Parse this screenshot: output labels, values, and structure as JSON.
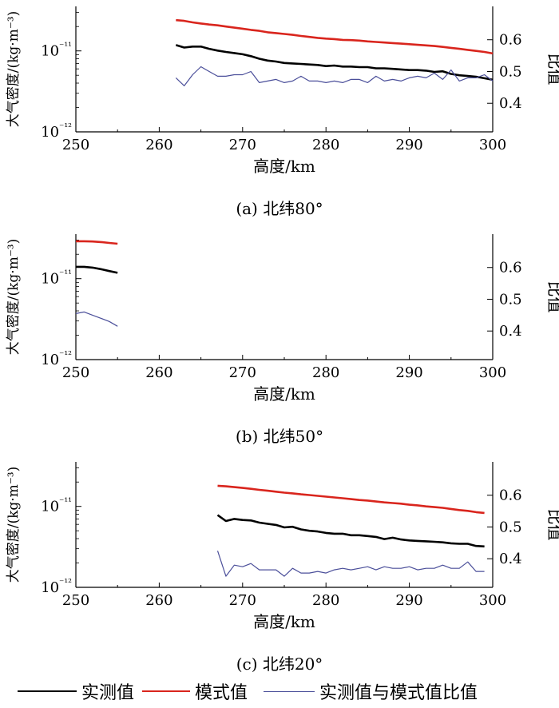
{
  "legend": {
    "measured": "实测值",
    "model": "模式值",
    "ratio": "实测值与模式值比值"
  },
  "colors": {
    "measured": "#000000",
    "model": "#d9251d",
    "ratio": "#4b4f9a"
  },
  "chart_data": [
    {
      "type": "line",
      "caption": "(a) 北纬80°",
      "xlabel": "高度/km",
      "ylabel": "大气密度/(kg·m⁻³)",
      "ylabel_right": "比值",
      "xlim": [
        250,
        300
      ],
      "xticks": [
        250,
        260,
        270,
        280,
        290,
        300
      ],
      "ylim_exp": [
        -12,
        -10.45
      ],
      "yscale": "log",
      "yticks": [
        {
          "exp": -12,
          "label": "10⁻¹²"
        },
        {
          "exp": -11,
          "label": "10⁻¹¹"
        }
      ],
      "y2lim": [
        0.31,
        0.705
      ],
      "y2ticks": [
        0.4,
        0.5,
        0.6
      ],
      "series": [
        {
          "name": "实测值",
          "axis": "left",
          "x": [
            262,
            263,
            264,
            265,
            266,
            267,
            268,
            269,
            270,
            271,
            272,
            273,
            274,
            275,
            276,
            277,
            278,
            279,
            280,
            281,
            282,
            283,
            284,
            285,
            286,
            287,
            288,
            289,
            290,
            291,
            292,
            293,
            294,
            295,
            296,
            297,
            298,
            299,
            300
          ],
          "y": [
            1.18e-11,
            1.1e-11,
            1.13e-11,
            1.13e-11,
            1.06e-11,
            1.01e-11,
            9.7e-12,
            9.4e-12,
            9.1e-12,
            8.6e-12,
            8e-12,
            7.6e-12,
            7.4e-12,
            7.1e-12,
            7e-12,
            6.9e-12,
            6.8e-12,
            6.7e-12,
            6.5e-12,
            6.6e-12,
            6.4e-12,
            6.4e-12,
            6.3e-12,
            6.3e-12,
            6.1e-12,
            6.1e-12,
            6e-12,
            5.9e-12,
            5.8e-12,
            5.8e-12,
            5.7e-12,
            5.5e-12,
            5.6e-12,
            5.2e-12,
            5e-12,
            4.9e-12,
            4.8e-12,
            4.6e-12,
            4.4e-12
          ]
        },
        {
          "name": "模式值",
          "axis": "left",
          "x": [
            262,
            263,
            264,
            265,
            266,
            267,
            268,
            269,
            270,
            271,
            272,
            273,
            274,
            275,
            276,
            277,
            278,
            279,
            280,
            281,
            282,
            283,
            284,
            285,
            286,
            287,
            288,
            289,
            290,
            291,
            292,
            293,
            294,
            295,
            296,
            297,
            298,
            299,
            300
          ],
          "y": [
            2.4e-11,
            2.35e-11,
            2.25e-11,
            2.18e-11,
            2.12e-11,
            2.07e-11,
            2e-11,
            1.94e-11,
            1.88e-11,
            1.82e-11,
            1.77e-11,
            1.7e-11,
            1.66e-11,
            1.62e-11,
            1.58e-11,
            1.53e-11,
            1.49e-11,
            1.45e-11,
            1.42e-11,
            1.4e-11,
            1.37e-11,
            1.36e-11,
            1.34e-11,
            1.31e-11,
            1.29e-11,
            1.27e-11,
            1.25e-11,
            1.23e-11,
            1.21e-11,
            1.19e-11,
            1.17e-11,
            1.15e-11,
            1.12e-11,
            1.09e-11,
            1.06e-11,
            1.03e-11,
            1e-11,
            9.7e-12,
            9.3e-12
          ]
        },
        {
          "name": "实测值与模式值比值",
          "axis": "right",
          "x": [
            262,
            263,
            264,
            265,
            266,
            267,
            268,
            269,
            270,
            271,
            272,
            273,
            274,
            275,
            276,
            277,
            278,
            279,
            280,
            281,
            282,
            283,
            284,
            285,
            286,
            287,
            288,
            289,
            290,
            291,
            292,
            293,
            294,
            295,
            296,
            297,
            298,
            299,
            300
          ],
          "y": [
            0.48,
            0.455,
            0.49,
            0.515,
            0.5,
            0.485,
            0.485,
            0.49,
            0.49,
            0.5,
            0.465,
            0.47,
            0.475,
            0.465,
            0.47,
            0.485,
            0.47,
            0.47,
            0.465,
            0.47,
            0.465,
            0.475,
            0.475,
            0.465,
            0.485,
            0.47,
            0.475,
            0.47,
            0.48,
            0.485,
            0.48,
            0.495,
            0.475,
            0.505,
            0.47,
            0.48,
            0.48,
            0.49,
            0.47
          ]
        }
      ]
    },
    {
      "type": "line",
      "caption": "(b) 北纬50°",
      "xlabel": "高度/km",
      "ylabel": "大气密度/(kg·m⁻³)",
      "ylabel_right": "比值",
      "xlim": [
        250,
        300
      ],
      "xticks": [
        250,
        260,
        270,
        280,
        290,
        300
      ],
      "ylim_exp": [
        -12,
        -10.45
      ],
      "yscale": "log",
      "yticks": [
        {
          "exp": -12,
          "label": "10⁻¹²"
        },
        {
          "exp": -11,
          "label": "10⁻¹¹"
        }
      ],
      "y2lim": [
        0.31,
        0.705
      ],
      "y2ticks": [
        0.4,
        0.5,
        0.6
      ],
      "series": [
        {
          "name": "实测值",
          "axis": "left",
          "x": [
            250,
            251,
            252,
            253,
            254,
            255
          ],
          "y": [
            1.4e-11,
            1.4e-11,
            1.37e-11,
            1.31e-11,
            1.24e-11,
            1.18e-11
          ]
        },
        {
          "name": "模式值",
          "axis": "left",
          "x": [
            250,
            251,
            252,
            253,
            254,
            255
          ],
          "y": [
            2.9e-11,
            2.9e-11,
            2.88e-11,
            2.83e-11,
            2.76e-11,
            2.7e-11
          ]
        },
        {
          "name": "实测值与模式值比值",
          "axis": "right",
          "x": [
            250,
            251,
            252,
            253,
            254,
            255
          ],
          "y": [
            0.455,
            0.46,
            0.45,
            0.44,
            0.43,
            0.415
          ]
        }
      ]
    },
    {
      "type": "line",
      "caption": "(c) 北纬20°",
      "xlabel": "高度/km",
      "ylabel": "大气密度/(kg·m⁻³)",
      "ylabel_right": "比值",
      "xlim": [
        250,
        300
      ],
      "xticks": [
        250,
        260,
        270,
        280,
        290,
        300
      ],
      "ylim_exp": [
        -12,
        -10.45
      ],
      "yscale": "log",
      "yticks": [
        {
          "exp": -12,
          "label": "10⁻¹²"
        },
        {
          "exp": -11,
          "label": "10⁻¹¹"
        }
      ],
      "y2lim": [
        0.31,
        0.705
      ],
      "y2ticks": [
        0.4,
        0.5,
        0.6
      ],
      "series": [
        {
          "name": "实测值",
          "axis": "left",
          "x": [
            267,
            268,
            269,
            270,
            271,
            272,
            273,
            274,
            275,
            276,
            277,
            278,
            279,
            280,
            281,
            282,
            283,
            284,
            285,
            286,
            287,
            288,
            289,
            290,
            291,
            292,
            293,
            294,
            295,
            296,
            297,
            298,
            299
          ],
          "y": [
            7.8e-12,
            6.6e-12,
            7e-12,
            6.8e-12,
            6.7e-12,
            6.3e-12,
            6.1e-12,
            5.9e-12,
            5.5e-12,
            5.6e-12,
            5.2e-12,
            5e-12,
            4.9e-12,
            4.7e-12,
            4.6e-12,
            4.6e-12,
            4.4e-12,
            4.4e-12,
            4.3e-12,
            4.2e-12,
            3.95e-12,
            4.1e-12,
            3.9e-12,
            3.8e-12,
            3.75e-12,
            3.7e-12,
            3.65e-12,
            3.6e-12,
            3.5e-12,
            3.45e-12,
            3.45e-12,
            3.25e-12,
            3.2e-12
          ]
        },
        {
          "name": "模式值",
          "axis": "left",
          "x": [
            267,
            268,
            269,
            270,
            271,
            272,
            273,
            274,
            275,
            276,
            277,
            278,
            279,
            280,
            281,
            282,
            283,
            284,
            285,
            286,
            287,
            288,
            289,
            290,
            291,
            292,
            293,
            294,
            295,
            296,
            297,
            298,
            299
          ],
          "y": [
            1.8e-11,
            1.77e-11,
            1.73e-11,
            1.69e-11,
            1.65e-11,
            1.6e-11,
            1.56e-11,
            1.52e-11,
            1.48e-11,
            1.45e-11,
            1.41e-11,
            1.38e-11,
            1.35e-11,
            1.32e-11,
            1.29e-11,
            1.26e-11,
            1.23e-11,
            1.2e-11,
            1.18e-11,
            1.15e-11,
            1.12e-11,
            1.1e-11,
            1.08e-11,
            1.05e-11,
            1.03e-11,
            1e-11,
            9.8e-12,
            9.6e-12,
            9.3e-12,
            9e-12,
            8.8e-12,
            8.5e-12,
            8.3e-12
          ]
        },
        {
          "name": "实测值与模式值比值",
          "axis": "right",
          "x": [
            267,
            268,
            269,
            270,
            271,
            272,
            273,
            274,
            275,
            276,
            277,
            278,
            279,
            280,
            281,
            282,
            283,
            284,
            285,
            286,
            287,
            288,
            289,
            290,
            291,
            292,
            293,
            294,
            295,
            296,
            297,
            298,
            299
          ],
          "y": [
            0.425,
            0.345,
            0.38,
            0.375,
            0.385,
            0.365,
            0.365,
            0.365,
            0.345,
            0.37,
            0.355,
            0.355,
            0.36,
            0.355,
            0.365,
            0.37,
            0.365,
            0.37,
            0.375,
            0.365,
            0.375,
            0.37,
            0.37,
            0.375,
            0.365,
            0.37,
            0.37,
            0.38,
            0.37,
            0.37,
            0.39,
            0.36,
            0.36
          ]
        }
      ]
    }
  ]
}
